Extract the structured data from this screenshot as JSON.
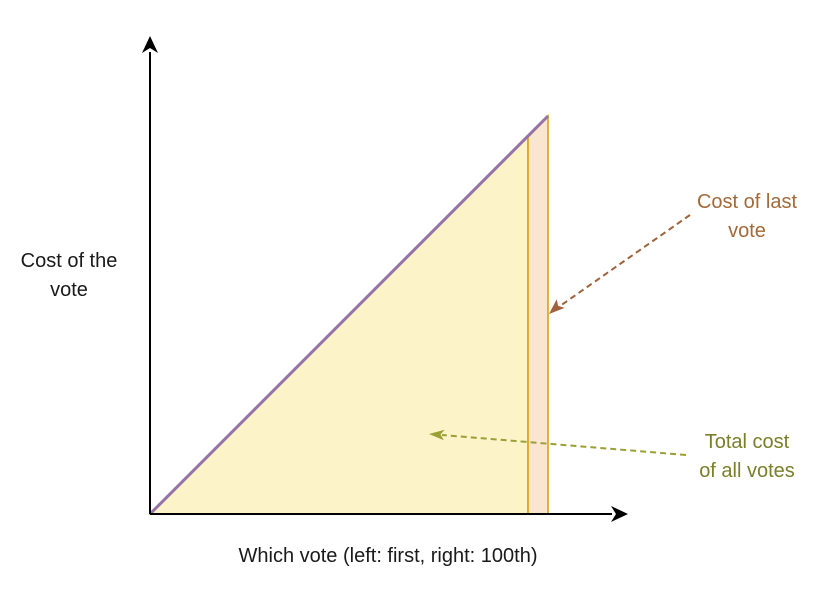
{
  "labels": {
    "y_axis": [
      "Cost of the",
      "vote"
    ],
    "x_axis": "Which vote (left: first, right: 100th)",
    "last_vote": [
      "Cost of last",
      "vote"
    ],
    "total_cost": [
      "Total cost",
      "of all votes"
    ]
  },
  "colors": {
    "axis": "#000000",
    "triangle_fill": "#fcf3c8",
    "triangle_edge": "#d6b656",
    "diagonal": "#9673a6",
    "last_strip_fill": "#fae6cf",
    "last_strip_edge": "#d79b00",
    "last_label": "#a26a3a",
    "last_arrow": "#a0623a",
    "total_label": "#7a7f2a",
    "total_arrow": "#9aa036"
  },
  "icons": {
    "y_axis_head": "arrowhead-up-icon",
    "x_axis_head": "arrowhead-right-icon",
    "last_arrow_head": "arrowhead-icon",
    "total_arrow_head": "arrowhead-icon"
  }
}
